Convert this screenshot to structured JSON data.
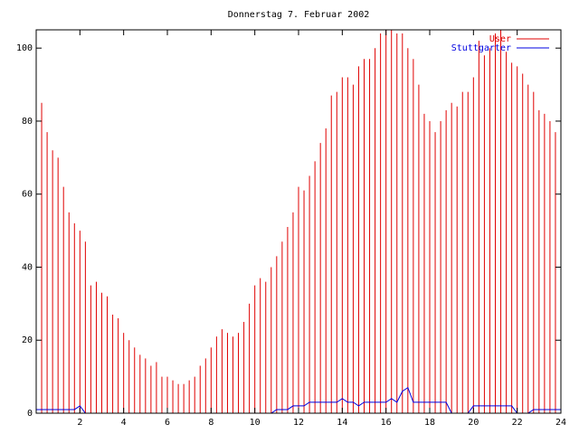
{
  "chart_data": {
    "type": "impulses",
    "title": "Donnerstag 7. Februar 2002",
    "x": [
      0,
      0.25,
      0.5,
      0.75,
      1,
      1.25,
      1.5,
      1.75,
      2,
      2.25,
      2.5,
      2.75,
      3,
      3.25,
      3.5,
      3.75,
      4,
      4.25,
      4.5,
      4.75,
      5,
      5.25,
      5.5,
      5.75,
      6,
      6.25,
      6.5,
      6.75,
      7,
      7.25,
      7.5,
      7.75,
      8,
      8.25,
      8.5,
      8.75,
      9,
      9.25,
      9.5,
      9.75,
      10,
      10.25,
      10.5,
      10.75,
      11,
      11.25,
      11.5,
      11.75,
      12,
      12.25,
      12.5,
      12.75,
      13,
      13.25,
      13.5,
      13.75,
      14,
      14.25,
      14.5,
      14.75,
      15,
      15.25,
      15.5,
      15.75,
      16,
      16.25,
      16.5,
      16.75,
      17,
      17.25,
      17.5,
      17.75,
      18,
      18.25,
      18.5,
      18.75,
      19,
      19.25,
      19.5,
      19.75,
      20,
      20.25,
      20.5,
      20.75,
      21,
      21.25,
      21.5,
      21.75,
      22,
      22.25,
      22.5,
      22.75,
      23,
      23.25,
      23.5,
      23.75,
      24
    ],
    "series": [
      {
        "name": "User",
        "color": "#e00000",
        "style": "impulses",
        "values": [
          87,
          85,
          77,
          72,
          70,
          62,
          55,
          52,
          50,
          47,
          35,
          36,
          33,
          32,
          27,
          26,
          22,
          20,
          18,
          16,
          15,
          13,
          14,
          10,
          10,
          9,
          8,
          8,
          9,
          10,
          13,
          15,
          18,
          21,
          23,
          22,
          21,
          22,
          25,
          30,
          35,
          37,
          36,
          40,
          43,
          47,
          51,
          55,
          62,
          61,
          65,
          69,
          74,
          78,
          87,
          88,
          92,
          92,
          90,
          95,
          97,
          97,
          100,
          104,
          107,
          106,
          104,
          104,
          100,
          97,
          90,
          82,
          80,
          77,
          80,
          83,
          85,
          84,
          88,
          88,
          92,
          102,
          98,
          100,
          104,
          106,
          99,
          96,
          95,
          93,
          90,
          88,
          83,
          82,
          80,
          77,
          70
        ]
      },
      {
        "name": "Stuttgarter",
        "color": "#0000e0",
        "style": "line",
        "values": [
          1,
          1,
          1,
          1,
          1,
          1,
          1,
          1,
          2,
          0,
          0,
          0,
          0,
          0,
          0,
          0,
          0,
          0,
          0,
          0,
          0,
          0,
          0,
          0,
          0,
          0,
          0,
          0,
          0,
          0,
          0,
          0,
          0,
          0,
          0,
          0,
          0,
          0,
          0,
          0,
          0,
          0,
          0,
          0,
          1,
          1,
          1,
          2,
          2,
          2,
          3,
          3,
          3,
          3,
          3,
          3,
          4,
          3,
          3,
          2,
          3,
          3,
          3,
          3,
          3,
          4,
          3,
          6,
          7,
          3,
          3,
          3,
          3,
          3,
          3,
          3,
          0,
          0,
          0,
          0,
          2,
          2,
          2,
          2,
          2,
          2,
          2,
          2,
          0,
          0,
          0,
          1,
          1,
          1,
          1,
          1,
          1
        ]
      }
    ],
    "xlim": [
      0,
      24
    ],
    "xticks": [
      2,
      4,
      6,
      8,
      10,
      12,
      14,
      16,
      18,
      20,
      22,
      24
    ],
    "ylim": [
      0,
      105
    ],
    "yticks": [
      0,
      20,
      40,
      60,
      80,
      100
    ],
    "legend": "upper right"
  }
}
